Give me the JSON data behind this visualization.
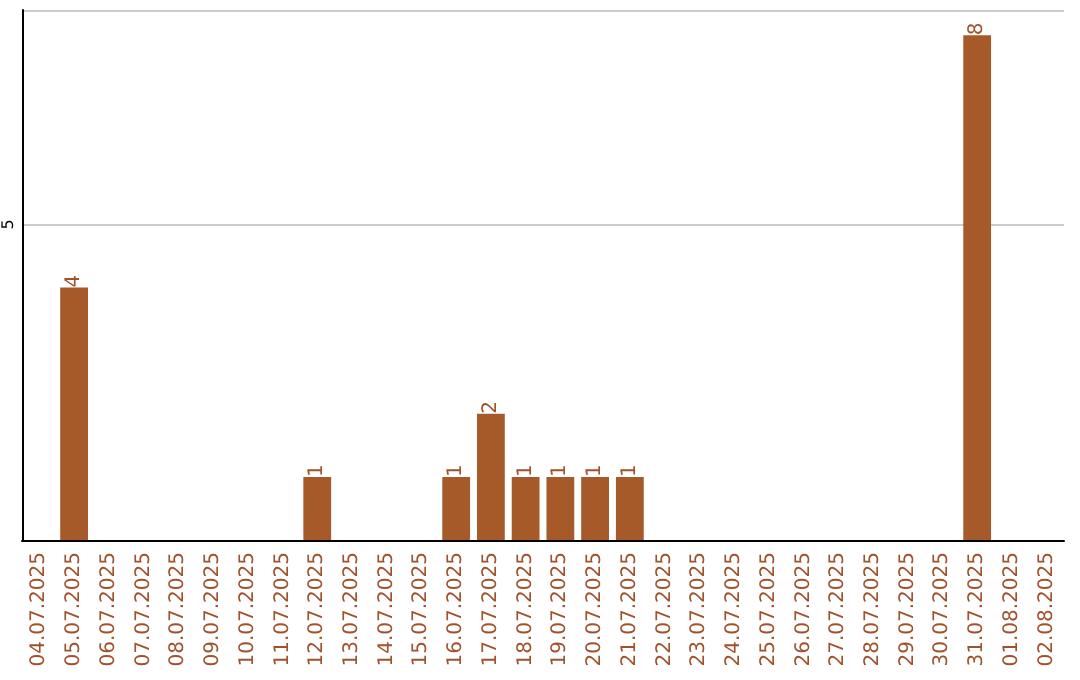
{
  "chart_data": {
    "type": "bar",
    "categories": [
      "04.07.2025",
      "05.07.2025",
      "06.07.2025",
      "07.07.2025",
      "08.07.2025",
      "09.07.2025",
      "10.07.2025",
      "11.07.2025",
      "12.07.2025",
      "13.07.2025",
      "14.07.2025",
      "15.07.2025",
      "16.07.2025",
      "17.07.2025",
      "18.07.2025",
      "19.07.2025",
      "20.07.2025",
      "21.07.2025",
      "22.07.2025",
      "23.07.2025",
      "24.07.2025",
      "25.07.2025",
      "26.07.2025",
      "27.07.2025",
      "28.07.2025",
      "29.07.2025",
      "30.07.2025",
      "31.07.2025",
      "01.08.2025",
      "02.08.2025"
    ],
    "values": [
      null,
      4,
      null,
      null,
      null,
      null,
      null,
      null,
      1,
      null,
      null,
      null,
      1,
      2,
      1,
      1,
      1,
      1,
      null,
      null,
      null,
      null,
      null,
      null,
      null,
      null,
      null,
      8,
      null,
      null
    ],
    "color": "#a65a2a",
    "ylim": [
      0,
      8.4
    ],
    "yticks": [
      0,
      5
    ],
    "grid": "y",
    "data_labels": true
  }
}
